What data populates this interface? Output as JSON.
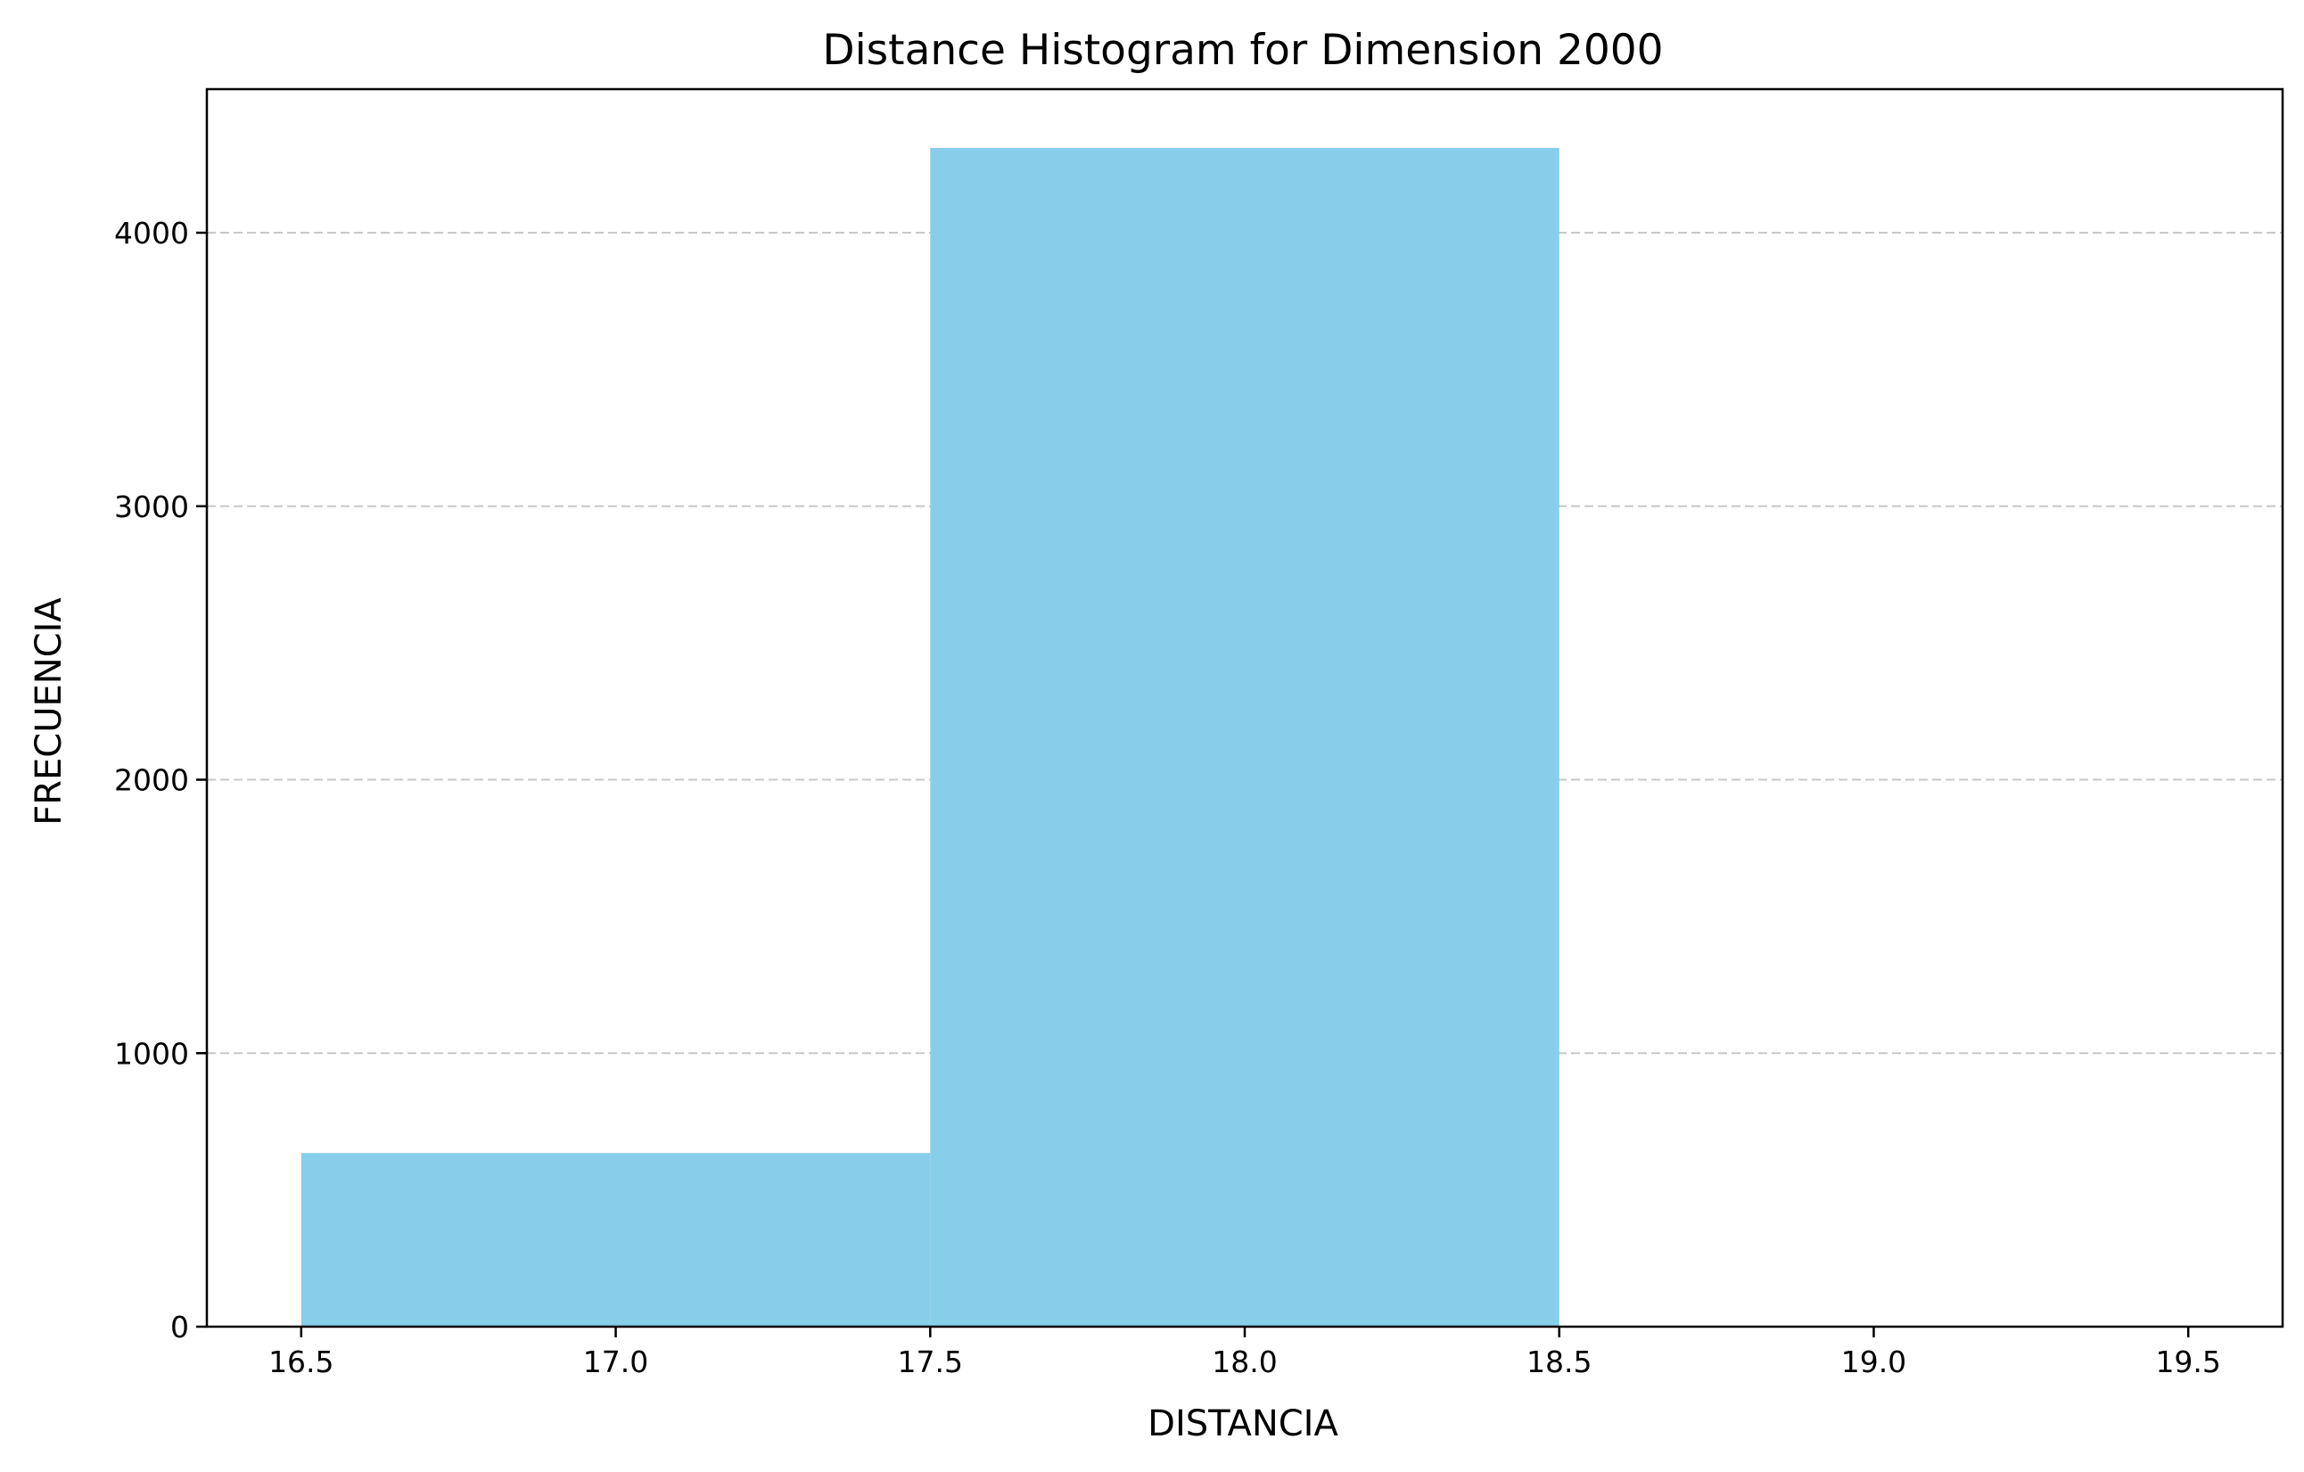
{
  "chart_data": {
    "type": "bar",
    "title": "Distance Histogram for Dimension 2000",
    "xlabel": "DISTANCIA",
    "ylabel": "FRECUENCIA",
    "bins": [
      {
        "x0": 16.5,
        "x1": 17.5,
        "value": 635
      },
      {
        "x0": 17.5,
        "x1": 18.5,
        "value": 4310
      },
      {
        "x0": 18.5,
        "x1": 19.5,
        "value": 0
      }
    ],
    "xlim": [
      16.35,
      19.65
    ],
    "ylim": [
      0,
      4525
    ],
    "xticks": [
      16.5,
      17.0,
      17.5,
      18.0,
      18.5,
      19.0,
      19.5
    ],
    "xtick_labels": [
      "16.5",
      "17.0",
      "17.5",
      "18.0",
      "18.5",
      "19.0",
      "19.5"
    ],
    "yticks": [
      0,
      1000,
      2000,
      3000,
      4000
    ],
    "ytick_labels": [
      "0",
      "1000",
      "2000",
      "3000",
      "4000"
    ],
    "grid": {
      "axis": "y",
      "style": "dashed"
    },
    "colors": {
      "bar": "#87CEEB",
      "grid": "#c8c8c8",
      "axes": "#000000"
    }
  }
}
